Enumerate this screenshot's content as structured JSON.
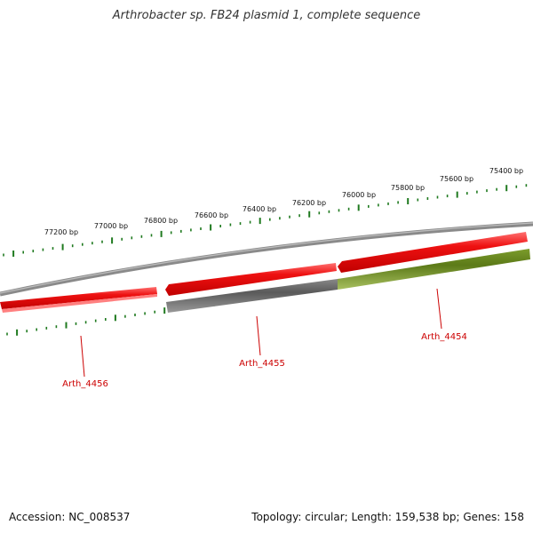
{
  "title": "Arthrobacter sp. FB24 plasmid 1, complete sequence",
  "footer": {
    "accession": "Accession: NC_008537",
    "summary": "Topology: circular; Length: 159,538 bp; Genes: 158"
  },
  "colors": {
    "tick": "#1f7a1f",
    "backbone": "#8a8a8a",
    "gene_red": "#ee1111",
    "gene_grey": "#666666",
    "gene_green": "#6b8e23",
    "label": "#cc0000"
  },
  "ruler": {
    "labels": [
      "77200 bp",
      "77000 bp",
      "76800 bp",
      "76600 bp",
      "76400 bp",
      "76200 bp",
      "76000 bp",
      "75800 bp",
      "75600 bp",
      "75400 bp"
    ]
  },
  "genes": [
    {
      "name": "Arth_4456"
    },
    {
      "name": "Arth_4455"
    },
    {
      "name": "Arth_4454"
    }
  ]
}
